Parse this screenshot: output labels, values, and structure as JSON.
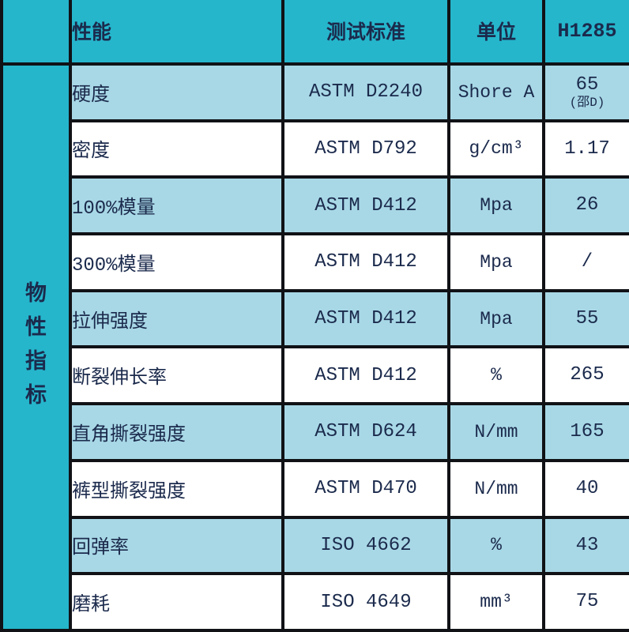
{
  "colors": {
    "teal": "#25b6cc",
    "row_shaded": "#a8d8e6",
    "row_white": "#ffffff",
    "border": "#101216",
    "text": "#1b2a4c"
  },
  "table": {
    "side_label": "物性指标",
    "side_label_chars": [
      "物",
      "性",
      "指",
      "标"
    ],
    "header": {
      "performance": "性能",
      "standard": "测试标准",
      "unit": "单位",
      "grade": "H1285"
    },
    "rows": [
      {
        "performance": "硬度",
        "standard": "ASTM D2240",
        "unit": "Shore A",
        "value": "65",
        "value_note": "(邵D)",
        "shaded": true
      },
      {
        "performance": "密度",
        "standard": "ASTM D792",
        "unit": "g/cm³",
        "value": "1.17",
        "value_note": "",
        "shaded": false
      },
      {
        "performance": "100%模量",
        "standard": "ASTM D412",
        "unit": "Mpa",
        "value": "26",
        "value_note": "",
        "shaded": true
      },
      {
        "performance": "300%模量",
        "standard": "ASTM D412",
        "unit": "Mpa",
        "value": "/",
        "value_note": "",
        "shaded": false
      },
      {
        "performance": "拉伸强度",
        "standard": "ASTM D412",
        "unit": "Mpa",
        "value": "55",
        "value_note": "",
        "shaded": true
      },
      {
        "performance": "断裂伸长率",
        "standard": "ASTM D412",
        "unit": "%",
        "value": "265",
        "value_note": "",
        "shaded": false
      },
      {
        "performance": "直角撕裂强度",
        "standard": "ASTM D624",
        "unit": "N/mm",
        "value": "165",
        "value_note": "",
        "shaded": true
      },
      {
        "performance": "裤型撕裂强度",
        "standard": "ASTM D470",
        "unit": "N/mm",
        "value": "40",
        "value_note": "",
        "shaded": false
      },
      {
        "performance": "回弹率",
        "standard": "ISO 4662",
        "unit": "%",
        "value": "43",
        "value_note": "",
        "shaded": true
      },
      {
        "performance": "磨耗",
        "standard": "ISO 4649",
        "unit": "mm³",
        "value": "75",
        "value_note": "",
        "shaded": false
      }
    ]
  },
  "chart_data": {
    "type": "table",
    "title": "物性指标 H1285",
    "columns": [
      "性能",
      "测试标准",
      "单位",
      "H1285"
    ],
    "rows": [
      [
        "硬度",
        "ASTM D2240",
        "Shore A",
        "65 (邵D)"
      ],
      [
        "密度",
        "ASTM D792",
        "g/cm³",
        "1.17"
      ],
      [
        "100%模量",
        "ASTM D412",
        "Mpa",
        "26"
      ],
      [
        "300%模量",
        "ASTM D412",
        "Mpa",
        "/"
      ],
      [
        "拉伸强度",
        "ASTM D412",
        "Mpa",
        "55"
      ],
      [
        "断裂伸长率",
        "ASTM D412",
        "%",
        "265"
      ],
      [
        "直角撕裂强度",
        "ASTM D624",
        "N/mm",
        "165"
      ],
      [
        "裤型撕裂强度",
        "ASTM D470",
        "N/mm",
        "40"
      ],
      [
        "回弹率",
        "ISO 4662",
        "%",
        "43"
      ],
      [
        "磨耗",
        "ISO 4649",
        "mm³",
        "75"
      ]
    ]
  }
}
